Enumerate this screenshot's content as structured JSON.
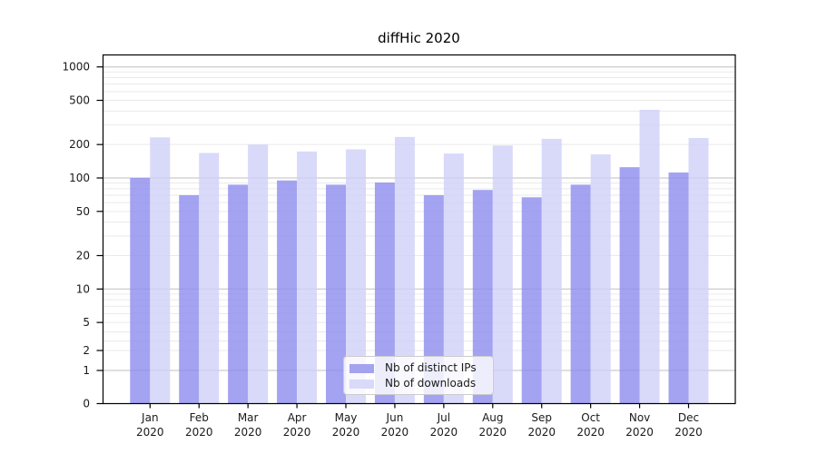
{
  "chart_data": {
    "type": "bar",
    "title": "diffHic 2020",
    "months": [
      "Jan",
      "Feb",
      "Mar",
      "Apr",
      "May",
      "Jun",
      "Jul",
      "Aug",
      "Sep",
      "Oct",
      "Nov",
      "Dec"
    ],
    "year_label": "2020",
    "series": [
      {
        "name": "Nb of distinct IPs",
        "color": "#a3a3ef",
        "fill": "rgba(140,140,238,0.8)",
        "values": [
          100,
          70,
          87,
          95,
          87,
          91,
          70,
          78,
          67,
          87,
          125,
          112
        ]
      },
      {
        "name": "Nb of downloads",
        "color": "#d9d9f8",
        "fill": "rgba(208,208,247,0.8)",
        "values": [
          232,
          168,
          200,
          173,
          181,
          234,
          166,
          196,
          225,
          163,
          411,
          229
        ]
      }
    ],
    "y_ticks": [
      0,
      1,
      2,
      5,
      10,
      20,
      50,
      100,
      200,
      500,
      1000
    ],
    "y_minor_ticks": [
      2,
      3,
      4,
      5,
      6,
      7,
      8,
      9,
      20,
      30,
      40,
      50,
      60,
      70,
      80,
      90,
      200,
      300,
      400,
      500,
      600,
      700,
      800,
      900
    ],
    "ylim": [
      0,
      1300
    ],
    "yscale": "log-with-linear-zero",
    "xlabel": "",
    "ylabel": "",
    "grid": "horizontal",
    "legend_position": "inside-bottom-center",
    "colors": {
      "major_grid": "#bfbfbf",
      "minor_grid": "#eaeaea",
      "axis": "#000000",
      "tick_text": "#1a1a1a"
    }
  }
}
